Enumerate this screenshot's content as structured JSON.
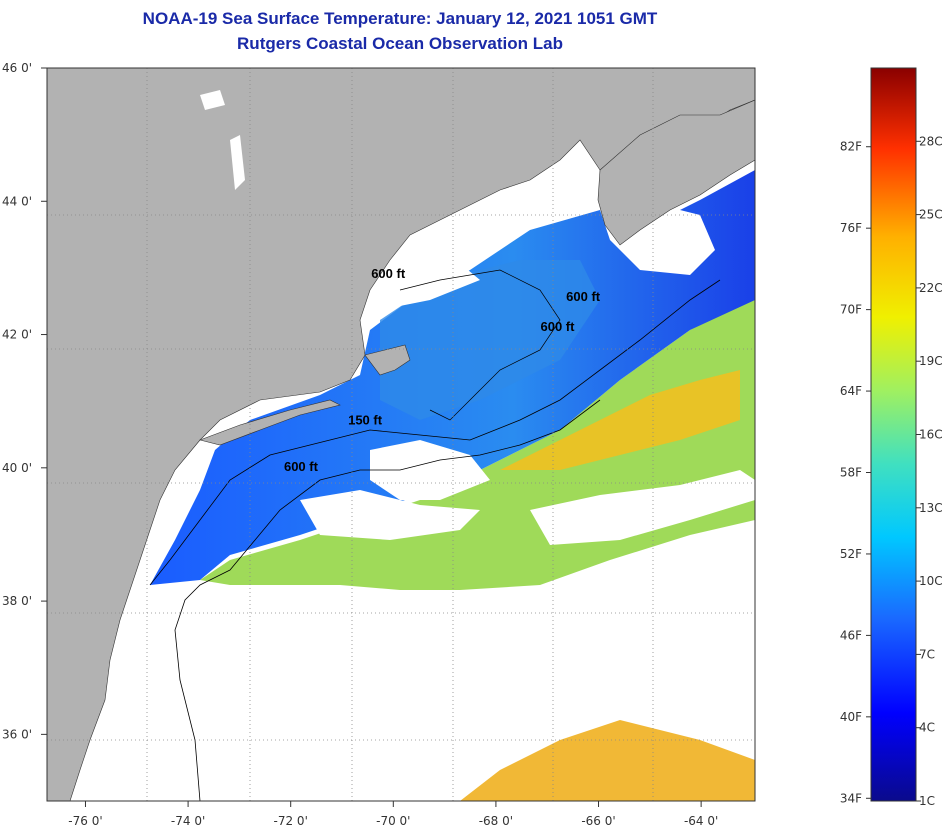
{
  "header": {
    "title": "NOAA-19 Sea Surface Temperature:  January 12, 2021 1051 GMT",
    "subtitle": "Rutgers Coastal Ocean Observation Lab"
  },
  "axes": {
    "lat_labels": [
      "46 0'",
      "44 0'",
      "42 0'",
      "40 0'",
      "38 0'",
      "36 0'"
    ],
    "lon_labels": [
      "-76 0'",
      "-74 0'",
      "-72 0'",
      "-70 0'",
      "-68 0'",
      "-66 0'",
      "-64 0'"
    ],
    "lat_range": [
      35,
      46
    ],
    "lon_range": [
      -76.75,
      -62.95
    ]
  },
  "contours": [
    {
      "label": "600 ft",
      "lon": -70.1,
      "lat": 42.85
    },
    {
      "label": "600 ft",
      "lon": -66.3,
      "lat": 42.5
    },
    {
      "label": "600 ft",
      "lon": -66.8,
      "lat": 42.05
    },
    {
      "label": "150 ft",
      "lon": -70.55,
      "lat": 40.65
    },
    {
      "label": "600 ft",
      "lon": -71.8,
      "lat": 39.95
    }
  ],
  "colorbar": {
    "fahrenheit_labels": [
      "82F",
      "76F",
      "70F",
      "64F",
      "58F",
      "52F",
      "46F",
      "40F",
      "34F"
    ],
    "celsius_labels": [
      "28C",
      "25C",
      "22C",
      "19C",
      "16C",
      "13C",
      "10C",
      "7C",
      "4C",
      "1C"
    ],
    "range_c": [
      1,
      31
    ],
    "colors": [
      "#0a0a8c",
      "#0000ff",
      "#1a6aff",
      "#00c8ff",
      "#40e0c0",
      "#a0f060",
      "#f0f000",
      "#ffb000",
      "#ff3000",
      "#8a0000"
    ]
  },
  "colors": {
    "land": "#b2b2b2",
    "title": "#1a2aa8",
    "cloud": "#ffffff"
  }
}
